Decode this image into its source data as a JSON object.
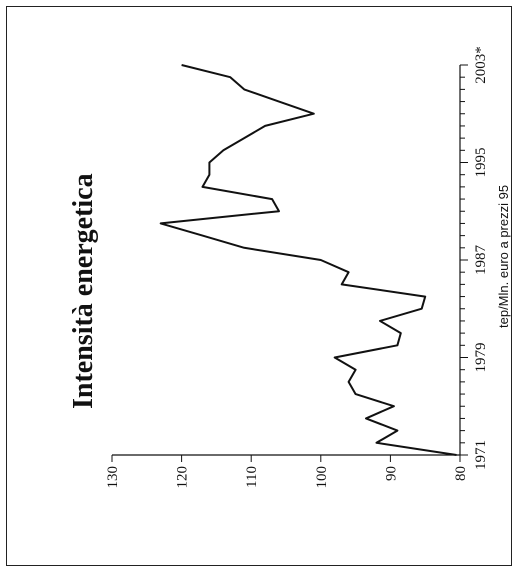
{
  "chart_data": {
    "type": "line",
    "title": "Intensità energetica",
    "ylabel": "tep/Mln. euro a prezzi 95",
    "xlabel": "",
    "ylim": [
      80,
      130
    ],
    "xlim": [
      1971,
      2003
    ],
    "yticks": [
      80,
      90,
      100,
      110,
      120,
      130
    ],
    "xtick_labels": [
      "1971",
      "1979",
      "1987",
      "1995",
      "2003*"
    ],
    "xtick_values": [
      1971,
      1979,
      1987,
      1995,
      2003
    ],
    "grid": false,
    "series": [
      {
        "x": [
          1971,
          1972,
          1973,
          1974,
          1975,
          1976,
          1977,
          1978,
          1979,
          1980,
          1981,
          1982,
          1983,
          1984,
          1985,
          1986,
          1987,
          1988,
          1989,
          1990,
          1991,
          1992,
          1993,
          1994,
          1995,
          1996,
          1997,
          1998,
          1999,
          2000,
          2001,
          2002,
          2003
        ],
        "values": [
          80.5,
          92,
          89,
          93.5,
          89.5,
          95,
          96,
          95,
          98,
          89,
          88.5,
          91.5,
          85.5,
          85,
          97,
          96,
          100,
          111,
          117,
          123,
          106,
          107,
          117,
          116,
          116,
          114,
          111,
          108,
          101,
          106,
          111,
          113,
          120
        ]
      }
    ]
  }
}
